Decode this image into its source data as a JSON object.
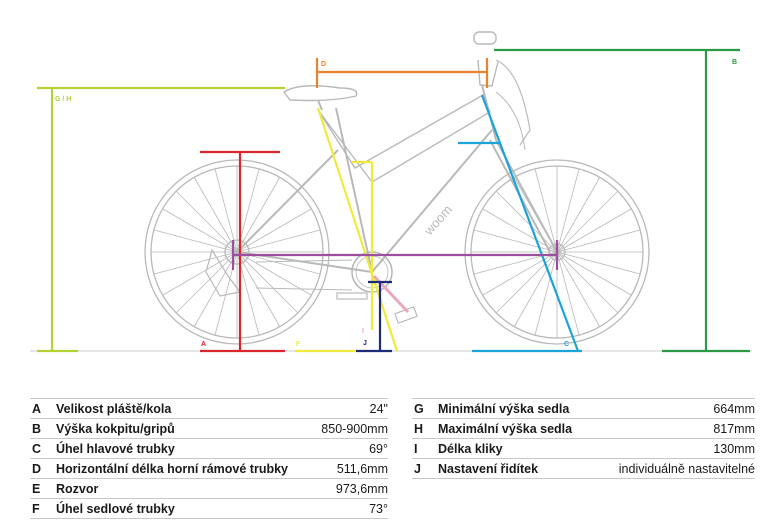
{
  "diagram": {
    "labels": {
      "a": "A",
      "b": "B",
      "c": "C",
      "d": "D",
      "f": "F",
      "gh": "G / H",
      "i": "I",
      "j": "J",
      "brand": "woom"
    },
    "colors": {
      "a": "#d9262e",
      "b": "#2a9a44",
      "c": "#1aa4d8",
      "d": "#e9832c",
      "e": "#9c4f9e",
      "f": "#f0ea3c",
      "gh": "#b3d335",
      "i": "#e9a8c0",
      "j": "#1e2c78",
      "bike": "#b9b9b9"
    }
  },
  "specs_left": [
    {
      "key": "A",
      "name": "Velikost pláště/kola",
      "value": "24\""
    },
    {
      "key": "B",
      "name": "Výška kokpitu/gripů",
      "value": "850-900mm"
    },
    {
      "key": "C",
      "name": "Úhel hlavové trubky",
      "value": "69°"
    },
    {
      "key": "D",
      "name": "Horizontální délka horní rámové trubky",
      "value": "511,6mm"
    },
    {
      "key": "E",
      "name": "Rozvor",
      "value": "973,6mm"
    },
    {
      "key": "F",
      "name": "Úhel sedlové trubky",
      "value": "73°"
    }
  ],
  "specs_right": [
    {
      "key": "G",
      "name": "Minimální výška sedla",
      "value": "664mm"
    },
    {
      "key": "H",
      "name": "Maximální výška sedla",
      "value": "817mm"
    },
    {
      "key": "I",
      "name": "Délka kliky",
      "value": "130mm"
    },
    {
      "key": "J",
      "name": "Nastavení řidítek",
      "value": "individuálně nastavitelné"
    }
  ]
}
